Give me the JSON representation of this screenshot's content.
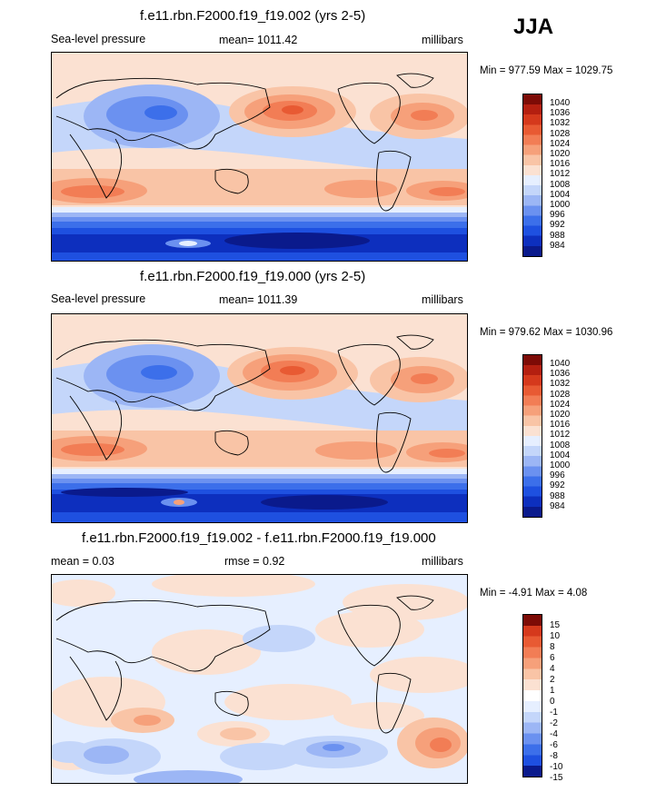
{
  "season": "JJA",
  "colors": {
    "abs_scale": [
      "#0a1a8c",
      "#0d2fbe",
      "#1e50e0",
      "#3c6fea",
      "#6b91f0",
      "#9cb6f5",
      "#c4d6fa",
      "#e6efff",
      "#fbe1d2",
      "#f9c4a6",
      "#f6a07a",
      "#f27d55",
      "#e85a33",
      "#d5391c",
      "#b41f10",
      "#7d0b06"
    ],
    "diff_scale": [
      "#0a1a8c",
      "#0d2fbe",
      "#1e50e0",
      "#3c6fea",
      "#6b91f0",
      "#9cb6f5",
      "#c4d6fa",
      "#e6efff",
      "#fbe1d2",
      "#f9c4a6",
      "#f6a07a",
      "#f27d55",
      "#e85a33",
      "#d5391c",
      "#7d0b06"
    ]
  },
  "panels": [
    {
      "title": "f.e11.rbn.F2000.f19_f19.002 (yrs 2-5)",
      "left_label": "Sea-level pressure",
      "center_label": "mean= 1011.42",
      "units": "millibars",
      "minmax": "Min = 977.59 Max = 1029.75",
      "levels": [
        "1040",
        "1036",
        "1032",
        "1028",
        "1024",
        "1020",
        "1016",
        "1012",
        "1008",
        "1004",
        "1000",
        "996",
        "992",
        "988",
        "984"
      ]
    },
    {
      "title": "f.e11.rbn.F2000.f19_f19.000 (yrs 2-5)",
      "left_label": "Sea-level pressure",
      "center_label": "mean= 1011.39",
      "units": "millibars",
      "minmax": "Min = 979.62 Max = 1030.96",
      "levels": [
        "1040",
        "1036",
        "1032",
        "1028",
        "1024",
        "1020",
        "1016",
        "1012",
        "1008",
        "1004",
        "1000",
        "996",
        "992",
        "988",
        "984"
      ]
    },
    {
      "title": "f.e11.rbn.F2000.f19_f19.002 - f.e11.rbn.F2000.f19_f19.000",
      "left_label": "mean =   0.03",
      "center_label": "rmse =   0.92",
      "units": "millibars",
      "minmax": "Min =  -4.91 Max =   4.08",
      "levels": [
        "15",
        "10",
        "8",
        "6",
        "4",
        "2",
        "1",
        "0",
        "-1",
        "-2",
        "-4",
        "-6",
        "-8",
        "-10",
        "-15"
      ]
    }
  ]
}
